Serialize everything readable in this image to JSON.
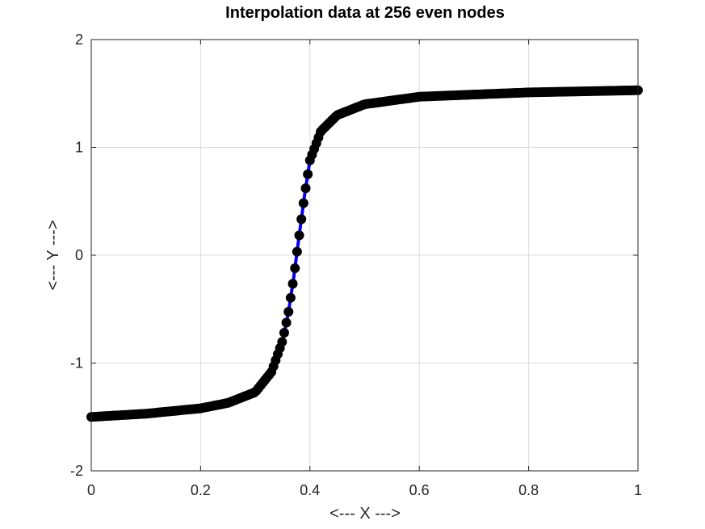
{
  "chart_data": {
    "type": "line",
    "title": "Interpolation data at 256 even nodes",
    "xlabel": "<--- X --->",
    "ylabel": "<--- Y --->",
    "xlim": [
      0,
      1
    ],
    "ylim": [
      -2,
      2
    ],
    "xticks": [
      0,
      0.2,
      0.4,
      0.6,
      0.8,
      1
    ],
    "xtick_labels": [
      "0",
      "0.2",
      "0.4",
      "0.6",
      "0.8",
      "1"
    ],
    "yticks": [
      -2,
      -1,
      0,
      1,
      2
    ],
    "ytick_labels": [
      "-2",
      "-1",
      "0",
      "1",
      "2"
    ],
    "grid": true,
    "num_nodes": 256,
    "series": [
      {
        "kind": "interpolant-curve",
        "style": "line",
        "color": "#0000ff",
        "x": [
          0,
          0.1,
          0.2,
          0.25,
          0.3,
          0.33,
          0.35,
          0.36,
          0.37,
          0.38,
          0.39,
          0.4,
          0.42,
          0.45,
          0.5,
          0.6,
          0.8,
          1.0
        ],
        "y": [
          -1.5,
          -1.47,
          -1.42,
          -1.37,
          -1.27,
          -1.08,
          -0.79,
          -0.55,
          -0.22,
          0.17,
          0.55,
          0.88,
          1.15,
          1.3,
          1.4,
          1.47,
          1.51,
          1.53
        ]
      },
      {
        "kind": "nodes",
        "style": "markers",
        "color": "#000000",
        "marker": "filled-circle",
        "x_start": 0,
        "x_end": 1,
        "count": 256,
        "curve": "same-as-interpolant"
      }
    ]
  }
}
